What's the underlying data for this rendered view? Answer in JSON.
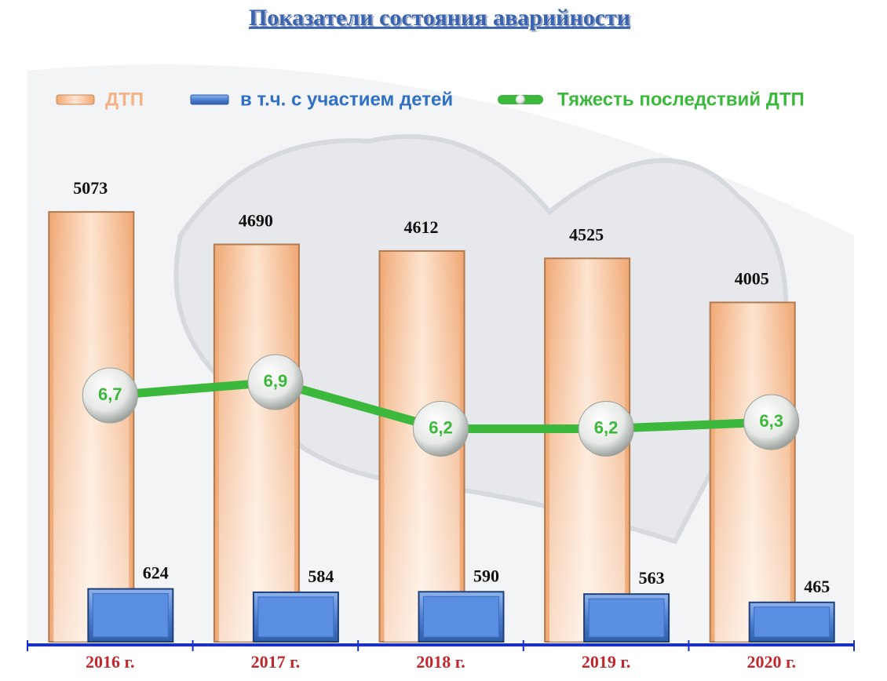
{
  "chart_data": {
    "type": "bar-line",
    "title": "Показатели состояния аварийности",
    "categories": [
      "2016 г.",
      "2017 г.",
      "2018 г.",
      "2019 г.",
      "2020 г."
    ],
    "series": [
      {
        "name": "ДТП",
        "color": "#f4b183",
        "values": [
          5073,
          4690,
          4612,
          4525,
          4005
        ]
      },
      {
        "name": "в т.ч. с участием детей",
        "color": "#4f81d1",
        "values": [
          624,
          584,
          590,
          563,
          465
        ]
      },
      {
        "name": "Тяжесть последствий ДТП",
        "color": "#3cb83c",
        "axis": "y2",
        "values": [
          6.7,
          6.9,
          6.2,
          6.2,
          6.3
        ],
        "value_labels": [
          "6,7",
          "6,9",
          "6,2",
          "6,2",
          "6,3"
        ]
      }
    ],
    "ylim": [
      0,
      5500
    ],
    "y2lim": [
      3,
      10
    ],
    "legend": "top"
  }
}
